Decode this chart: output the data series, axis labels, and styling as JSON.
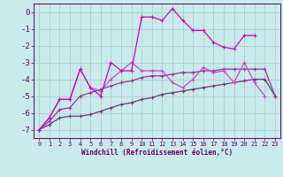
{
  "xlabel": "Windchill (Refroidissement éolien,°C)",
  "x_values": [
    0,
    1,
    2,
    3,
    4,
    5,
    6,
    7,
    8,
    9,
    10,
    11,
    12,
    13,
    14,
    15,
    16,
    17,
    18,
    19,
    20,
    21,
    22,
    23
  ],
  "line1": [
    -7.0,
    -6.3,
    -5.2,
    -5.2,
    -3.4,
    -4.5,
    -5.0,
    -3.0,
    -3.5,
    -3.5,
    -0.3,
    -0.3,
    -0.5,
    0.2,
    -0.5,
    -1.1,
    -1.1,
    -1.8,
    -2.1,
    -2.2,
    -1.4,
    -1.4,
    null,
    null
  ],
  "line2": [
    -7.0,
    -6.3,
    -5.2,
    -5.2,
    -3.4,
    -4.5,
    -4.7,
    -4.0,
    -3.5,
    -3.0,
    -3.5,
    -3.5,
    -3.5,
    -4.2,
    -4.5,
    -4.0,
    -3.3,
    -3.6,
    -3.5,
    -4.2,
    -3.0,
    -4.2,
    -5.0,
    null
  ],
  "line3": [
    -7.0,
    -6.5,
    -5.8,
    -5.7,
    -5.0,
    -4.8,
    -4.6,
    -4.4,
    -4.2,
    -4.1,
    -3.9,
    -3.8,
    -3.8,
    -3.7,
    -3.6,
    -3.6,
    -3.5,
    -3.5,
    -3.4,
    -3.4,
    -3.4,
    -3.4,
    -3.4,
    -5.0
  ],
  "line4": [
    -7.0,
    -6.7,
    -6.3,
    -6.2,
    -6.2,
    -6.1,
    -5.9,
    -5.7,
    -5.5,
    -5.4,
    -5.2,
    -5.1,
    -4.9,
    -4.8,
    -4.7,
    -4.6,
    -4.5,
    -4.4,
    -4.3,
    -4.2,
    -4.1,
    -4.0,
    -4.0,
    -5.0
  ],
  "bg_color": "#c8eaea",
  "grid_color": "#aacfcf",
  "line1_color": "#cc00cc",
  "line2_color": "#cc44cc",
  "line3_color": "#993399",
  "line4_color": "#773377",
  "ylim": [
    -7.5,
    0.5
  ],
  "yticks": [
    0,
    -1,
    -2,
    -3,
    -4,
    -5,
    -6,
    -7
  ],
  "xticks": [
    0,
    1,
    2,
    3,
    4,
    5,
    6,
    7,
    8,
    9,
    10,
    11,
    12,
    13,
    14,
    15,
    16,
    17,
    18,
    19,
    20,
    21,
    22,
    23
  ],
  "tick_color": "#660066",
  "label_fontsize": 5.5,
  "ytick_fontsize": 6.5,
  "xtick_fontsize": 5.0
}
